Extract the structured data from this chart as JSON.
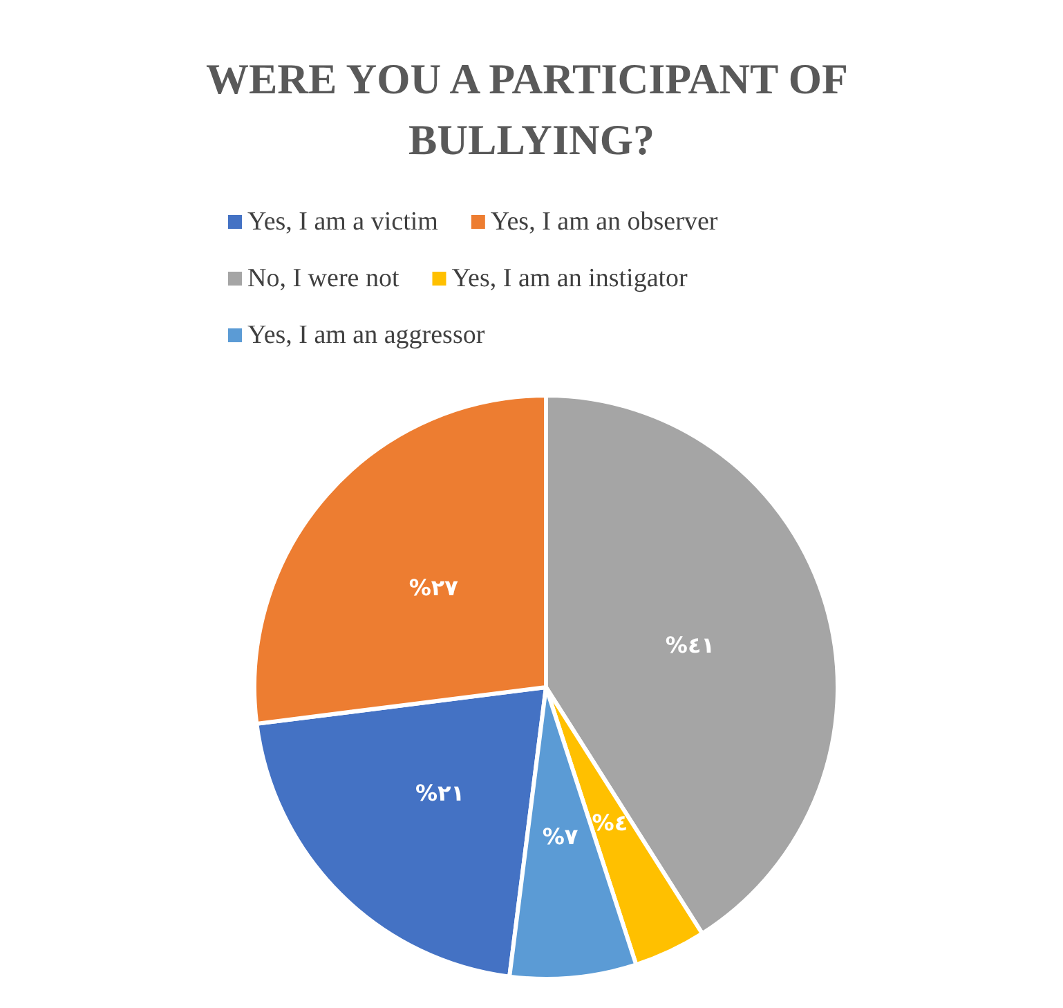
{
  "chart_data": {
    "type": "pie",
    "title": "WERE YOU A PARTICIPANT OF BULLYING?",
    "categories": [
      "Yes, I am a victim",
      "Yes, I am an observer",
      "No, I were not",
      "Yes, I am an instigator",
      "Yes, I am an aggressor"
    ],
    "values": [
      21,
      27,
      41,
      4,
      7
    ],
    "colors": [
      "#4472c4",
      "#ed7d31",
      "#a5a5a5",
      "#ffc000",
      "#5b9bd5"
    ],
    "value_labels": [
      "%٢١",
      "%٢٧",
      "%٤١",
      "%٤",
      "%٧"
    ],
    "legend": "top"
  }
}
